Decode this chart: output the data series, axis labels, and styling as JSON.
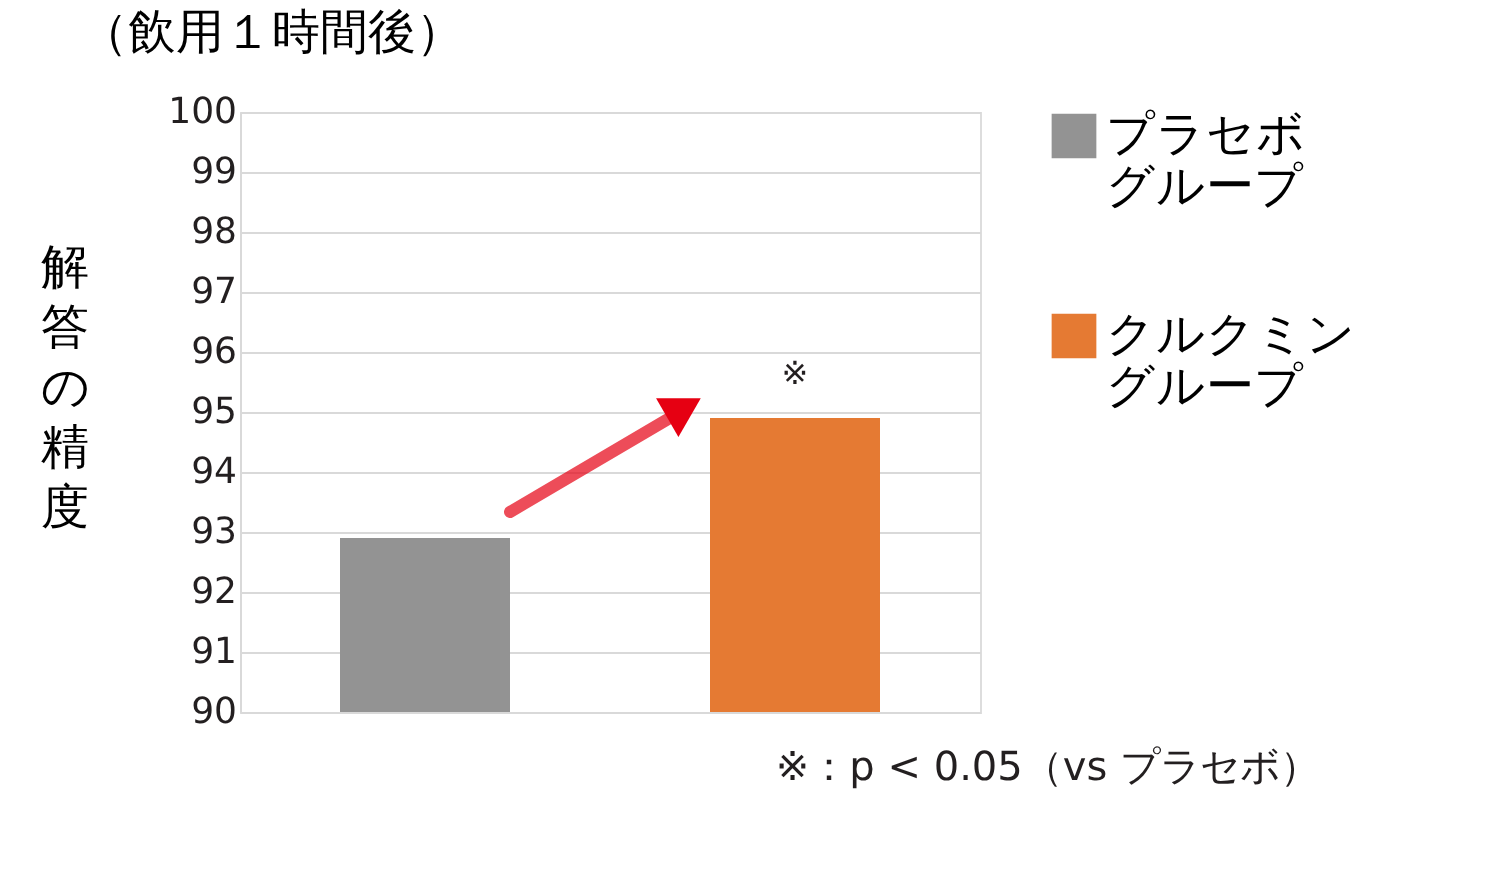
{
  "chart_data": {
    "type": "bar",
    "title": "（飲用１時間後）",
    "ylabel": "解答の精度",
    "categories": [
      null,
      null
    ],
    "series": [
      {
        "name": "プラセボグループ",
        "color": "#939393",
        "values": [
          92.9,
          null
        ]
      },
      {
        "name": "クルクミングループ",
        "color": "#e57a33",
        "values": [
          null,
          94.9
        ]
      }
    ],
    "ylim": [
      90,
      100
    ],
    "yticks": [
      90,
      91,
      92,
      93,
      94,
      95,
      96,
      97,
      98,
      99,
      100
    ],
    "grid": "y",
    "legend": "right",
    "annotations": [
      "※",
      "※：p < 0.05（vs プラセボ）"
    ]
  }
}
